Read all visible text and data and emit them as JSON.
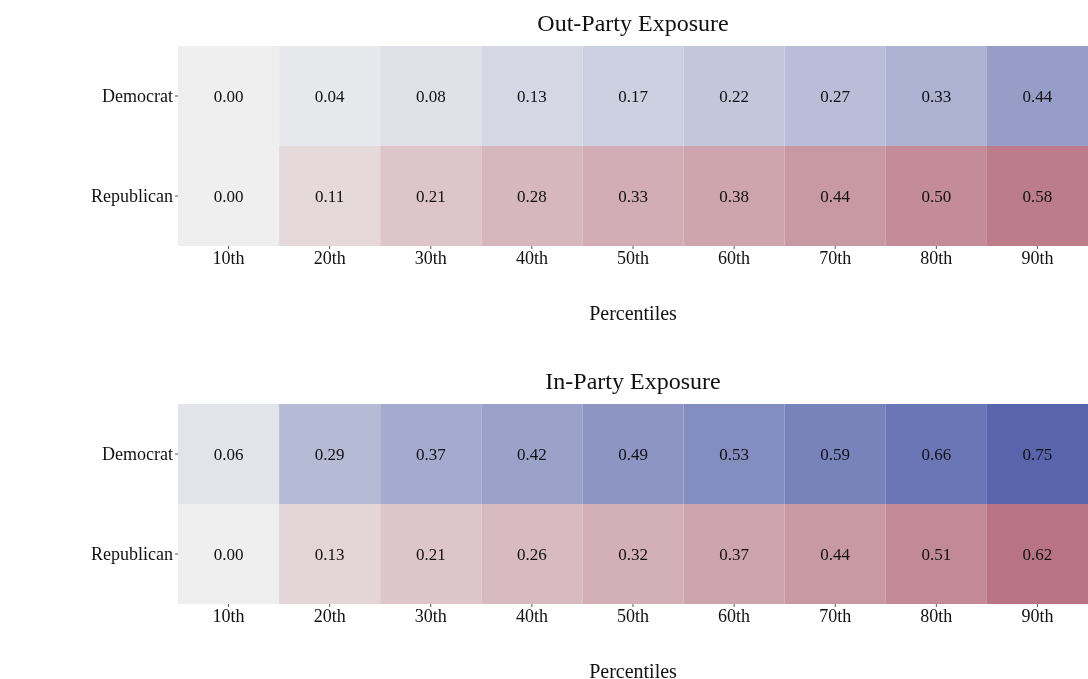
{
  "chart_data": [
    {
      "type": "heatmap",
      "title": "Out-Party Exposure",
      "xlabel": "Percentiles",
      "categories": [
        "10th",
        "20th",
        "30th",
        "40th",
        "50th",
        "60th",
        "70th",
        "80th",
        "90th"
      ],
      "y_categories": [
        "Democrat",
        "Republican"
      ],
      "cells": [
        [
          0.0,
          0.04,
          0.08,
          0.13,
          0.17,
          0.22,
          0.27,
          0.33,
          0.44
        ],
        [
          0.0,
          0.11,
          0.21,
          0.28,
          0.33,
          0.38,
          0.44,
          0.5,
          0.58
        ]
      ],
      "cell_labels": [
        [
          "0.00",
          "0.04",
          "0.08",
          "0.13",
          "0.17",
          "0.22",
          "0.27",
          "0.33",
          "0.44"
        ],
        [
          "0.00",
          "0.11",
          "0.21",
          "0.28",
          "0.33",
          "0.38",
          "0.44",
          "0.50",
          "0.58"
        ]
      ],
      "colors": [
        "#5865ad",
        "#ad5a6d"
      ],
      "data_labels": true
    },
    {
      "type": "heatmap",
      "title": "In-Party Exposure",
      "xlabel": "Percentiles",
      "categories": [
        "10th",
        "20th",
        "30th",
        "40th",
        "50th",
        "60th",
        "70th",
        "80th",
        "90th"
      ],
      "y_categories": [
        "Democrat",
        "Republican"
      ],
      "cells": [
        [
          0.06,
          0.29,
          0.37,
          0.42,
          0.49,
          0.53,
          0.59,
          0.66,
          0.75
        ],
        [
          0.0,
          0.13,
          0.21,
          0.26,
          0.32,
          0.37,
          0.44,
          0.51,
          0.62
        ]
      ],
      "cell_labels": [
        [
          "0.06",
          "0.29",
          "0.37",
          "0.42",
          "0.49",
          "0.53",
          "0.59",
          "0.66",
          "0.75"
        ],
        [
          "0.00",
          "0.13",
          "0.21",
          "0.26",
          "0.32",
          "0.37",
          "0.44",
          "0.51",
          "0.62"
        ]
      ],
      "colors": [
        "#5865ad",
        "#ad5a6d"
      ],
      "data_labels": true
    }
  ]
}
